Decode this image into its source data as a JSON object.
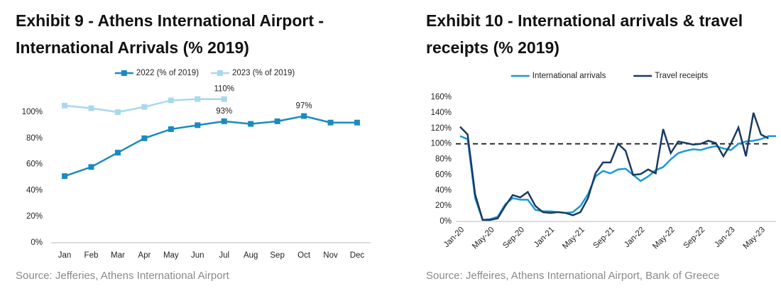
{
  "chart_data": [
    {
      "type": "line",
      "title": "Exhibit 9 - Athens International Airport - International Arrivals (% 2019)",
      "source": "Source: Jefferies, Athens International Airport",
      "categories": [
        "Jan",
        "Feb",
        "Mar",
        "Apr",
        "May",
        "Jun",
        "Jul",
        "Aug",
        "Sep",
        "Oct",
        "Nov",
        "Dec"
      ],
      "series": [
        {
          "name": "2022 (% of 2019)",
          "color": "#1a8ac0",
          "values": [
            51,
            58,
            69,
            80,
            87,
            90,
            93,
            91,
            93,
            97,
            92,
            92
          ],
          "value_labels": [
            null,
            null,
            null,
            null,
            null,
            null,
            "93%",
            null,
            null,
            "97%",
            null,
            null
          ]
        },
        {
          "name": "2023 (% of 2019)",
          "color": "#a9d8ee",
          "values": [
            105,
            103,
            100,
            104,
            109,
            110,
            110,
            null,
            null,
            null,
            null,
            null
          ],
          "value_labels": [
            null,
            null,
            null,
            null,
            null,
            null,
            "110%",
            null,
            null,
            null,
            null,
            null
          ]
        }
      ],
      "markers": true,
      "ylim": [
        0,
        115
      ],
      "yticks": [
        {
          "value": 0,
          "label": "0%"
        },
        {
          "value": 20,
          "label": "20%"
        },
        {
          "value": 40,
          "label": "40%"
        },
        {
          "value": 60,
          "label": "60%"
        },
        {
          "value": 80,
          "label": "80%"
        },
        {
          "value": 100,
          "label": "100%"
        }
      ],
      "grid": false,
      "legend": "top"
    },
    {
      "type": "line",
      "title": "Exhibit 10 - International arrivals & travel receipts (% 2019)",
      "source": "Source: Jeffeires, Athens International Airport, Bank of Greece",
      "categories": [
        "Jan-20",
        null,
        null,
        null,
        "May-20",
        null,
        null,
        null,
        "Sep-20",
        null,
        null,
        null,
        "Jan-21",
        null,
        null,
        null,
        "May-21",
        null,
        null,
        null,
        "Sep-21",
        null,
        null,
        null,
        "Jan-22",
        null,
        null,
        null,
        "May-22",
        null,
        null,
        null,
        "Sep-22",
        null,
        null,
        null,
        "Jan-23",
        null,
        null,
        null,
        "May-23",
        null,
        null
      ],
      "series": [
        {
          "name": "International arrivals",
          "color": "#1a9ad6",
          "values": [
            110,
            106,
            30,
            2,
            3,
            6,
            22,
            30,
            28,
            28,
            15,
            13,
            13,
            12,
            11,
            12,
            20,
            35,
            58,
            65,
            62,
            67,
            68,
            60,
            52,
            58,
            66,
            70,
            80,
            88,
            91,
            93,
            92,
            95,
            97,
            94,
            92,
            100,
            103,
            104,
            106,
            110,
            110
          ]
        },
        {
          "name": "Travel receipts",
          "color": "#1a3a63",
          "values": [
            122,
            112,
            35,
            2,
            2,
            4,
            20,
            34,
            31,
            38,
            20,
            12,
            11,
            12,
            11,
            8,
            12,
            30,
            62,
            76,
            76,
            100,
            91,
            60,
            61,
            67,
            62,
            119,
            88,
            103,
            101,
            99,
            100,
            104,
            101,
            84,
            100,
            121,
            84,
            140,
            112,
            107,
            null
          ]
        }
      ],
      "markers": false,
      "hline": 100,
      "ylim": [
        0,
        160
      ],
      "yticks": [
        {
          "value": 0,
          "label": "0%"
        },
        {
          "value": 20,
          "label": "20%"
        },
        {
          "value": 40,
          "label": "40%"
        },
        {
          "value": 60,
          "label": "60%"
        },
        {
          "value": 80,
          "label": "80%"
        },
        {
          "value": 100,
          "label": "100%"
        },
        {
          "value": 120,
          "label": "120%"
        },
        {
          "value": 140,
          "label": "140%"
        },
        {
          "value": 160,
          "label": "160%"
        }
      ],
      "grid": false,
      "legend": "top"
    }
  ]
}
